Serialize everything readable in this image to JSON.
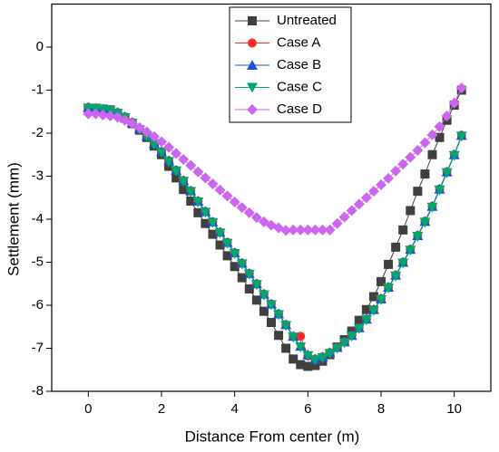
{
  "chart_data": {
    "type": "line",
    "x_label": "Distance From center (m)",
    "y_label": "Settlement (mm)",
    "xlim": [
      -1,
      11
    ],
    "xticks": [
      0,
      2,
      4,
      6,
      8,
      10
    ],
    "ylim": [
      -8,
      1
    ],
    "yticks": [
      0,
      -1,
      -2,
      -3,
      -4,
      -5,
      -6,
      -7,
      -8
    ],
    "legend": "upper center",
    "x": [
      0,
      0.2,
      0.4,
      0.6,
      0.8,
      1,
      1.2,
      1.4,
      1.6,
      1.8,
      2,
      2.2,
      2.4,
      2.6,
      2.8,
      3,
      3.2,
      3.4,
      3.6,
      3.8,
      4,
      4.2,
      4.4,
      4.6,
      4.8,
      5,
      5.2,
      5.4,
      5.6,
      5.8,
      6,
      6.2,
      6.4,
      6.6,
      6.8,
      7,
      7.2,
      7.4,
      7.6,
      7.8,
      8,
      8.2,
      8.4,
      8.6,
      8.8,
      9,
      9.2,
      9.4,
      9.6,
      9.8,
      10,
      10.2
    ],
    "series": [
      {
        "name": "Untreated",
        "color": "#404040",
        "marker": "square",
        "values": [
          -1.42,
          -1.42,
          -1.44,
          -1.46,
          -1.55,
          -1.65,
          -1.78,
          -1.93,
          -2.1,
          -2.3,
          -2.5,
          -2.77,
          -3.04,
          -3.31,
          -3.58,
          -3.85,
          -4.1,
          -4.35,
          -4.6,
          -4.85,
          -5.1,
          -5.36,
          -5.62,
          -5.88,
          -6.14,
          -6.4,
          -6.7,
          -7.0,
          -7.25,
          -7.38,
          -7.42,
          -7.4,
          -7.3,
          -7.15,
          -6.97,
          -6.8,
          -6.6,
          -6.35,
          -6.1,
          -5.8,
          -5.45,
          -5.05,
          -4.65,
          -4.25,
          -3.8,
          -3.35,
          -2.95,
          -2.5,
          -2.1,
          -1.7,
          -1.35,
          -1.0
        ]
      },
      {
        "name": "Case A",
        "color": "#ff2a2a",
        "marker": "circle",
        "values": [
          -1.4,
          -1.42,
          -1.44,
          -1.46,
          -1.52,
          -1.62,
          -1.75,
          -1.9,
          -2.06,
          -2.24,
          -2.43,
          -2.64,
          -2.86,
          -3.1,
          -3.34,
          -3.58,
          -3.82,
          -4.06,
          -4.3,
          -4.54,
          -4.78,
          -5.02,
          -5.26,
          -5.5,
          -5.74,
          -5.97,
          -6.2,
          -6.45,
          -6.72,
          -6.72,
          -7.18,
          -7.25,
          -7.2,
          -7.1,
          -6.98,
          -6.85,
          -6.7,
          -6.52,
          -6.32,
          -6.1,
          -5.85,
          -5.58,
          -5.3,
          -5.0,
          -4.7,
          -4.38,
          -4.05,
          -3.7,
          -3.3,
          -2.9,
          -2.5,
          -2.05
        ]
      },
      {
        "name": "Case B",
        "color": "#1f4fe0",
        "marker": "triangle-up",
        "values": [
          -1.4,
          -1.42,
          -1.44,
          -1.46,
          -1.52,
          -1.62,
          -1.75,
          -1.9,
          -2.06,
          -2.24,
          -2.43,
          -2.64,
          -2.86,
          -3.1,
          -3.34,
          -3.58,
          -3.82,
          -4.06,
          -4.3,
          -4.54,
          -4.78,
          -5.02,
          -5.26,
          -5.5,
          -5.74,
          -5.97,
          -6.2,
          -6.45,
          -6.72,
          -6.95,
          -7.15,
          -7.25,
          -7.2,
          -7.1,
          -6.98,
          -6.85,
          -6.7,
          -6.52,
          -6.32,
          -6.1,
          -5.85,
          -5.58,
          -5.3,
          -5.0,
          -4.7,
          -4.38,
          -4.05,
          -3.7,
          -3.3,
          -2.9,
          -2.5,
          -2.05
        ]
      },
      {
        "name": "Case C",
        "color": "#00a86b",
        "marker": "triangle-down",
        "values": [
          -1.42,
          -1.43,
          -1.45,
          -1.48,
          -1.54,
          -1.64,
          -1.77,
          -1.92,
          -2.08,
          -2.26,
          -2.45,
          -2.66,
          -2.88,
          -3.12,
          -3.36,
          -3.6,
          -3.84,
          -4.08,
          -4.32,
          -4.56,
          -4.8,
          -5.04,
          -5.28,
          -5.52,
          -5.76,
          -5.99,
          -6.22,
          -6.47,
          -6.74,
          -6.97,
          -7.17,
          -7.27,
          -7.22,
          -7.12,
          -7.0,
          -6.87,
          -6.72,
          -6.54,
          -6.34,
          -6.12,
          -5.87,
          -5.6,
          -5.32,
          -5.02,
          -4.72,
          -4.4,
          -4.07,
          -3.72,
          -3.32,
          -2.92,
          -2.52,
          -2.07
        ]
      },
      {
        "name": "Case D",
        "color": "#cc66ee",
        "marker": "diamond",
        "values": [
          -1.55,
          -1.55,
          -1.58,
          -1.6,
          -1.63,
          -1.7,
          -1.78,
          -1.87,
          -1.97,
          -2.08,
          -2.2,
          -2.33,
          -2.47,
          -2.61,
          -2.75,
          -2.9,
          -3.04,
          -3.18,
          -3.32,
          -3.46,
          -3.6,
          -3.73,
          -3.85,
          -3.96,
          -4.06,
          -4.14,
          -4.2,
          -4.26,
          -4.25,
          -4.25,
          -4.25,
          -4.25,
          -4.25,
          -4.25,
          -4.1,
          -3.95,
          -3.8,
          -3.65,
          -3.5,
          -3.35,
          -3.2,
          -3.05,
          -2.88,
          -2.72,
          -2.56,
          -2.4,
          -2.22,
          -2.04,
          -1.85,
          -1.6,
          -1.3,
          -0.95
        ]
      }
    ]
  }
}
